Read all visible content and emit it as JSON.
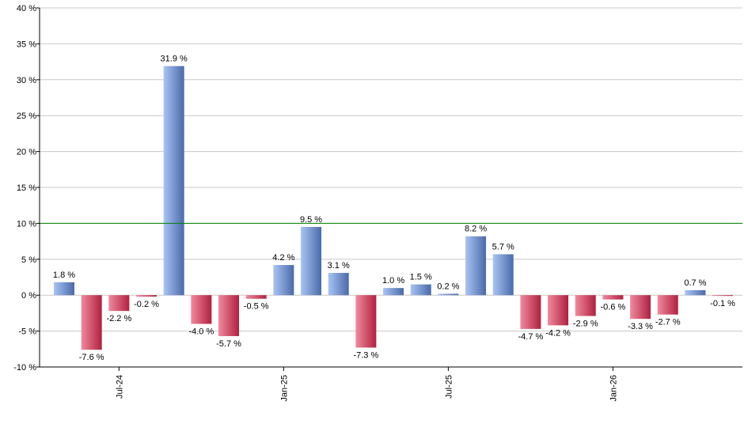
{
  "chart_data": {
    "type": "bar",
    "title": "",
    "xlabel": "",
    "ylabel": "",
    "ylim": [
      -10,
      40
    ],
    "y_ticks": [
      "40 %",
      "35 %",
      "30 %",
      "25 %",
      "20 %",
      "15 %",
      "10 %",
      "5 %",
      "0 %",
      "-5 %",
      "-10 %"
    ],
    "y_tick_values": [
      40,
      35,
      30,
      25,
      20,
      15,
      10,
      5,
      0,
      -5,
      -10
    ],
    "x_tick_labels": [
      {
        "label": "Jul-24",
        "index": 2
      },
      {
        "label": "Jan-25",
        "index": 8
      },
      {
        "label": "Jul-25",
        "index": 14
      },
      {
        "label": "Jan-26",
        "index": 20
      }
    ],
    "values": [
      1.8,
      -7.6,
      -2.2,
      -0.2,
      31.9,
      -4.0,
      -5.7,
      -0.5,
      4.2,
      9.5,
      3.1,
      -7.3,
      1.0,
      1.5,
      0.2,
      8.2,
      5.7,
      -4.7,
      -4.2,
      -2.9,
      -0.6,
      -3.3,
      -2.7,
      0.7,
      -0.1
    ],
    "labels": [
      "1.8 %",
      "-7.6 %",
      "-2.2 %",
      "-0.2 %",
      "31.9 %",
      "-4.0 %",
      "-5.7 %",
      "-0.5 %",
      "4.2 %",
      "9.5 %",
      "3.1 %",
      "-7.3 %",
      "1.0 %",
      "1.5 %",
      "0.2 %",
      "8.2 %",
      "5.7 %",
      "-4.7 %",
      "-4.2 %",
      "-2.9 %",
      "-0.6 %",
      "-3.3 %",
      "-2.7 %",
      "0.7 %",
      "-0.1 %"
    ],
    "reference_line": 10,
    "grid": true,
    "colors": {
      "positive_light": "#a9c4f5",
      "positive_dark": "#4a6aa8",
      "negative_light": "#f08a9e",
      "negative_dark": "#b0203f",
      "reference": "#008000",
      "grid": "#c8c8c8"
    }
  }
}
